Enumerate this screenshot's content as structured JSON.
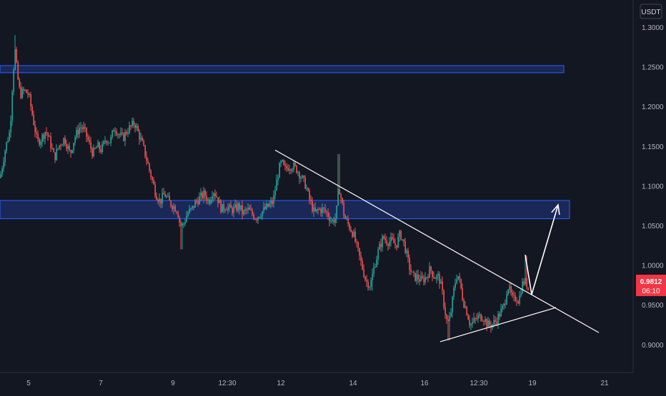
{
  "currency_label": "USDT",
  "price_badge": {
    "price": "0.9812",
    "countdown": "06:10",
    "color": "#f23645"
  },
  "colors": {
    "background": "#131722",
    "up": "#26a69a",
    "down": "#ef5350",
    "zone_fill": "#1e2f6b",
    "zone_stroke": "#2962ff",
    "drawing": "#ffffff",
    "axis_text": "#b2b5be"
  },
  "chart_data": {
    "type": "candlestick",
    "title": "",
    "ylim": [
      0.86,
      1.33
    ],
    "y_ticks": [
      "1.3000",
      "1.2500",
      "1.2000",
      "1.1500",
      "1.1000",
      "1.0500",
      "1.0000",
      "0.9500",
      "0.9000"
    ],
    "x_ticks": [
      "5",
      "7",
      "9",
      "12:30",
      "12",
      "14",
      "16",
      "12:30",
      "19",
      "21"
    ],
    "price_path": [
      [
        0,
        1.11
      ],
      [
        8,
        1.15
      ],
      [
        14,
        1.17
      ],
      [
        18,
        1.24
      ],
      [
        21,
        1.27
      ],
      [
        24,
        1.24
      ],
      [
        28,
        1.215
      ],
      [
        34,
        1.22
      ],
      [
        40,
        1.215
      ],
      [
        46,
        1.185
      ],
      [
        52,
        1.155
      ],
      [
        58,
        1.16
      ],
      [
        64,
        1.17
      ],
      [
        70,
        1.155
      ],
      [
        76,
        1.135
      ],
      [
        82,
        1.15
      ],
      [
        90,
        1.16
      ],
      [
        98,
        1.14
      ],
      [
        104,
        1.16
      ],
      [
        112,
        1.175
      ],
      [
        118,
        1.17
      ],
      [
        124,
        1.155
      ],
      [
        130,
        1.14
      ],
      [
        136,
        1.15
      ],
      [
        142,
        1.145
      ],
      [
        148,
        1.16
      ],
      [
        154,
        1.155
      ],
      [
        160,
        1.175
      ],
      [
        166,
        1.165
      ],
      [
        172,
        1.16
      ],
      [
        178,
        1.17
      ],
      [
        184,
        1.175
      ],
      [
        188,
        1.18
      ],
      [
        194,
        1.165
      ],
      [
        200,
        1.15
      ],
      [
        206,
        1.13
      ],
      [
        212,
        1.11
      ],
      [
        218,
        1.09
      ],
      [
        224,
        1.08
      ],
      [
        230,
        1.09
      ],
      [
        236,
        1.08
      ],
      [
        242,
        1.075
      ],
      [
        248,
        1.07
      ],
      [
        252,
        1.05
      ],
      [
        256,
        1.05
      ],
      [
        262,
        1.065
      ],
      [
        268,
        1.07
      ],
      [
        274,
        1.08
      ],
      [
        280,
        1.085
      ],
      [
        286,
        1.09
      ],
      [
        292,
        1.08
      ],
      [
        298,
        1.095
      ],
      [
        304,
        1.085
      ],
      [
        310,
        1.07
      ],
      [
        316,
        1.075
      ],
      [
        322,
        1.07
      ],
      [
        328,
        1.07
      ],
      [
        334,
        1.075
      ],
      [
        340,
        1.065
      ],
      [
        346,
        1.07
      ],
      [
        352,
        1.065
      ],
      [
        358,
        1.06
      ],
      [
        364,
        1.065
      ],
      [
        370,
        1.07
      ],
      [
        376,
        1.075
      ],
      [
        382,
        1.08
      ],
      [
        386,
        1.1
      ],
      [
        390,
        1.12
      ],
      [
        394,
        1.13
      ],
      [
        398,
        1.12
      ],
      [
        404,
        1.125
      ],
      [
        410,
        1.125
      ],
      [
        416,
        1.12
      ],
      [
        422,
        1.11
      ],
      [
        428,
        1.1
      ],
      [
        432,
        1.085
      ],
      [
        436,
        1.075
      ],
      [
        440,
        1.065
      ],
      [
        446,
        1.07
      ],
      [
        452,
        1.07
      ],
      [
        458,
        1.065
      ],
      [
        464,
        1.055
      ],
      [
        470,
        1.06
      ],
      [
        474,
        1.1
      ],
      [
        478,
        1.08
      ],
      [
        482,
        1.06
      ],
      [
        488,
        1.05
      ],
      [
        494,
        1.04
      ],
      [
        500,
        1.02
      ],
      [
        506,
        1.0
      ],
      [
        512,
        0.98
      ],
      [
        518,
        0.975
      ],
      [
        524,
        1.0
      ],
      [
        530,
        1.02
      ],
      [
        536,
        1.035
      ],
      [
        542,
        1.03
      ],
      [
        548,
        1.03
      ],
      [
        554,
        1.025
      ],
      [
        560,
        1.04
      ],
      [
        566,
        1.025
      ],
      [
        572,
        1.0
      ],
      [
        578,
        0.985
      ],
      [
        584,
        0.985
      ],
      [
        590,
        0.98
      ],
      [
        596,
        0.985
      ],
      [
        602,
        0.995
      ],
      [
        608,
        0.985
      ],
      [
        614,
        0.985
      ],
      [
        618,
        0.97
      ],
      [
        622,
        0.945
      ],
      [
        626,
        0.925
      ],
      [
        630,
        0.935
      ],
      [
        636,
        0.975
      ],
      [
        640,
        0.99
      ],
      [
        644,
        0.975
      ],
      [
        648,
        0.955
      ],
      [
        652,
        0.945
      ],
      [
        658,
        0.925
      ],
      [
        664,
        0.93
      ],
      [
        670,
        0.935
      ],
      [
        676,
        0.935
      ],
      [
        682,
        0.925
      ],
      [
        688,
        0.925
      ],
      [
        694,
        0.93
      ],
      [
        700,
        0.94
      ],
      [
        706,
        0.95
      ],
      [
        710,
        0.975
      ],
      [
        714,
        0.965
      ],
      [
        718,
        0.955
      ],
      [
        722,
        0.96
      ],
      [
        726,
        0.955
      ],
      [
        730,
        0.975
      ],
      [
        734,
        0.98
      ],
      [
        738,
        0.975
      ],
      [
        740,
        0.965
      ]
    ],
    "zones": [
      {
        "name": "upper-resistance-zone",
        "from": 1.2425,
        "to": 1.2515,
        "end_x_label": "19"
      },
      {
        "name": "middle-supply-zone",
        "from": 1.0585,
        "to": 1.0815,
        "end_x_label": "21"
      }
    ],
    "trendlines": [
      {
        "name": "descending-trendline",
        "from": [
          385,
          1.145
        ],
        "to": [
          838,
          0.915
        ]
      },
      {
        "name": "ascending-support-line",
        "from": [
          616,
          0.9035
        ],
        "to": [
          778,
          0.9465
        ]
      }
    ],
    "projection": [
      [
        735,
        1.013
      ],
      [
        744,
        0.963
      ],
      [
        781,
        1.076
      ]
    ]
  }
}
